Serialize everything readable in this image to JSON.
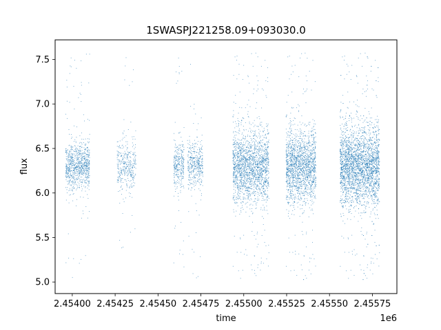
{
  "chart_data": {
    "type": "scatter",
    "title": "1SWASPJ221258.09+093030.0",
    "xlabel": "time",
    "ylabel": "flux",
    "x_offset_label": "1e6",
    "xlim": [
      2453900,
      2455893
    ],
    "ylim": [
      4.87,
      7.72
    ],
    "x_ticks": [
      2454000,
      2454250,
      2454500,
      2454750,
      2455000,
      2455250,
      2455500,
      2455750
    ],
    "x_tick_labels": [
      "2.45400",
      "2.45425",
      "2.45450",
      "2.45475",
      "2.45500",
      "2.45525",
      "2.45550",
      "2.45575"
    ],
    "y_ticks": [
      5.0,
      5.5,
      6.0,
      6.5,
      7.0,
      7.5
    ],
    "y_tick_labels": [
      "5.0",
      "5.5",
      "6.0",
      "6.5",
      "7.0",
      "7.5"
    ],
    "grid": false,
    "marker_color": "#1f77b4",
    "series": [
      {
        "clusters": [
          {
            "x_start": 2453960,
            "x_end": 2454100,
            "y_center": 6.3,
            "y_spread": 0.13,
            "count": 900
          },
          {
            "x_start": 2454260,
            "x_end": 2454370,
            "y_center": 6.3,
            "y_spread": 0.14,
            "count": 380
          },
          {
            "x_start": 2454590,
            "x_end": 2454650,
            "y_center": 6.3,
            "y_spread": 0.13,
            "count": 320
          },
          {
            "x_start": 2454670,
            "x_end": 2454760,
            "y_center": 6.32,
            "y_spread": 0.13,
            "count": 420
          },
          {
            "x_start": 2454935,
            "x_end": 2455145,
            "y_center": 6.3,
            "y_spread": 0.2,
            "count": 2000
          },
          {
            "x_start": 2455245,
            "x_end": 2455420,
            "y_center": 6.3,
            "y_spread": 0.2,
            "count": 1800
          },
          {
            "x_start": 2455560,
            "x_end": 2455790,
            "y_center": 6.3,
            "y_spread": 0.22,
            "count": 3000
          }
        ]
      }
    ]
  }
}
